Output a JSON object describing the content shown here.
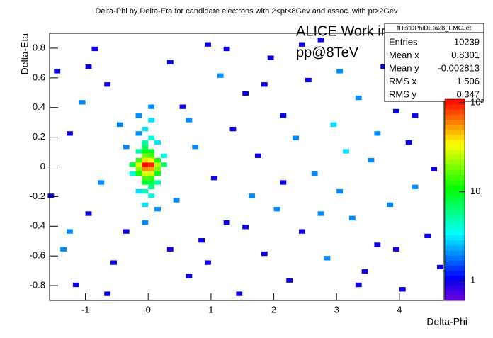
{
  "chart_data": {
    "type": "heatmap",
    "title": "Delta-Phi by Delta-Eta for candidate electrons with 2<pt<8Gev and assoc. with pt>2Gev",
    "xlabel": "Delta-Phi",
    "ylabel": "Delta-Eta",
    "annotations": [
      "ALICE Work in Progress",
      "pp@8TeV"
    ],
    "xlim": [
      -1.5708,
      4.7124
    ],
    "xticks": [
      -1,
      0,
      1,
      2,
      3,
      4
    ],
    "ylim": [
      -0.9,
      0.9
    ],
    "yticks": [
      -0.8,
      -0.6,
      -0.4,
      -0.2,
      0,
      0.2,
      0.4,
      0.6,
      0.8
    ],
    "zlim": [
      0.6,
      110
    ],
    "zticks": [
      1,
      10,
      {
        "value": 100,
        "label": "10²"
      }
    ],
    "zlog": true,
    "stats": {
      "title": "fHistDPhiDEta28_EMCJet",
      "rows": [
        [
          "Entries",
          10239
        ],
        [
          "Mean x",
          0.8301
        ],
        [
          "Mean y",
          -0.002813
        ],
        [
          "RMS x",
          1.506
        ],
        [
          "RMS y",
          0.347
        ]
      ]
    },
    "cells": [
      [
        -0.05,
        0.015,
        110
      ],
      [
        0.05,
        0.015,
        95
      ],
      [
        -0.05,
        -0.015,
        60
      ],
      [
        0.05,
        -0.015,
        55
      ],
      [
        -0.05,
        0.045,
        40
      ],
      [
        0.05,
        0.045,
        35
      ],
      [
        -0.15,
        0.015,
        30
      ],
      [
        0.15,
        0.015,
        25
      ],
      [
        -0.05,
        -0.045,
        30
      ],
      [
        0.05,
        -0.045,
        28
      ],
      [
        -0.15,
        -0.015,
        20
      ],
      [
        0.15,
        -0.015,
        18
      ],
      [
        -0.05,
        0.075,
        18
      ],
      [
        0.05,
        0.075,
        15
      ],
      [
        -0.05,
        -0.075,
        15
      ],
      [
        0.05,
        -0.075,
        14
      ],
      [
        -0.15,
        0.045,
        14
      ],
      [
        0.15,
        0.045,
        12
      ],
      [
        -0.15,
        -0.045,
        12
      ],
      [
        0.15,
        -0.045,
        10
      ],
      [
        -0.05,
        0.105,
        10
      ],
      [
        0.05,
        0.105,
        9
      ],
      [
        -0.05,
        -0.105,
        9
      ],
      [
        0.05,
        -0.105,
        8
      ],
      [
        -0.25,
        0.015,
        8
      ],
      [
        0.25,
        0.015,
        7
      ],
      [
        -0.05,
        0.135,
        7
      ],
      [
        0.05,
        -0.135,
        6
      ],
      [
        -0.05,
        0.165,
        5
      ],
      [
        0.05,
        0.195,
        4
      ],
      [
        -0.05,
        -0.165,
        5
      ],
      [
        0.05,
        -0.195,
        4
      ],
      [
        -0.15,
        0.105,
        5
      ],
      [
        0.15,
        -0.105,
        5
      ],
      [
        -0.25,
        -0.045,
        4
      ],
      [
        0.25,
        0.075,
        4
      ],
      [
        -0.05,
        0.255,
        3
      ],
      [
        0.05,
        0.315,
        3
      ],
      [
        -0.05,
        -0.255,
        3
      ],
      [
        -0.15,
        0.225,
        2
      ],
      [
        0.15,
        -0.285,
        2
      ],
      [
        -0.15,
        0.345,
        2
      ],
      [
        0.05,
        0.405,
        2
      ],
      [
        -0.05,
        -0.375,
        2
      ],
      [
        0.15,
        0.165,
        3
      ],
      [
        -0.15,
        -0.165,
        3
      ],
      [
        -1.45,
        0.645,
        1
      ],
      [
        -1.35,
        -0.555,
        2
      ],
      [
        -1.25,
        0.225,
        1
      ],
      [
        -1.15,
        -0.795,
        1
      ],
      [
        -1.05,
        0.435,
        2
      ],
      [
        -0.95,
        -0.315,
        1
      ],
      [
        -0.85,
        0.795,
        1
      ],
      [
        -0.75,
        -0.105,
        2
      ],
      [
        -0.65,
        0.555,
        1
      ],
      [
        -0.55,
        -0.645,
        1
      ],
      [
        -0.45,
        0.285,
        2
      ],
      [
        -0.35,
        -0.435,
        1
      ],
      [
        0.35,
        0.705,
        1
      ],
      [
        0.45,
        -0.225,
        2
      ],
      [
        0.55,
        0.405,
        1
      ],
      [
        0.65,
        -0.735,
        1
      ],
      [
        0.75,
        0.135,
        2
      ],
      [
        0.85,
        -0.495,
        1
      ],
      [
        0.95,
        0.825,
        1
      ],
      [
        1.05,
        -0.075,
        1
      ],
      [
        1.15,
        0.615,
        2
      ],
      [
        1.25,
        -0.375,
        1
      ],
      [
        1.35,
        0.255,
        1
      ],
      [
        1.45,
        -0.855,
        1
      ],
      [
        1.55,
        0.495,
        1
      ],
      [
        1.65,
        -0.195,
        2
      ],
      [
        1.75,
        0.075,
        1
      ],
      [
        1.85,
        -0.585,
        1
      ],
      [
        1.95,
        0.735,
        1
      ],
      [
        2.05,
        -0.285,
        2
      ],
      [
        2.15,
        0.345,
        1
      ],
      [
        2.25,
        -0.765,
        1
      ],
      [
        2.35,
        0.195,
        2
      ],
      [
        2.45,
        -0.435,
        1
      ],
      [
        2.55,
        0.585,
        1
      ],
      [
        2.65,
        -0.045,
        2
      ],
      [
        2.75,
        0.855,
        1
      ],
      [
        2.85,
        -0.615,
        2
      ],
      [
        2.95,
        0.285,
        3
      ],
      [
        3.05,
        -0.165,
        2
      ],
      [
        3.15,
        0.105,
        3
      ],
      [
        3.25,
        -0.345,
        2
      ],
      [
        3.35,
        0.465,
        2
      ],
      [
        3.45,
        -0.705,
        1
      ],
      [
        3.55,
        0.045,
        2
      ],
      [
        3.65,
        -0.525,
        1
      ],
      [
        3.75,
        0.675,
        1
      ],
      [
        3.85,
        -0.255,
        2
      ],
      [
        3.95,
        0.375,
        1
      ],
      [
        4.05,
        -0.825,
        1
      ],
      [
        4.15,
        0.165,
        1
      ],
      [
        4.25,
        -0.135,
        2
      ],
      [
        4.35,
        0.525,
        1
      ],
      [
        4.45,
        -0.465,
        1
      ],
      [
        4.55,
        0.765,
        1
      ],
      [
        4.65,
        -0.675,
        1
      ],
      [
        -1.55,
        -0.195,
        1
      ],
      [
        -1.25,
        -0.435,
        2
      ],
      [
        -0.95,
        0.675,
        1
      ],
      [
        -0.65,
        -0.855,
        1
      ],
      [
        -0.35,
        0.135,
        2
      ],
      [
        0.35,
        -0.555,
        1
      ],
      [
        0.65,
        0.315,
        2
      ],
      [
        0.95,
        -0.645,
        1
      ],
      [
        1.25,
        0.795,
        1
      ],
      [
        1.55,
        -0.405,
        1
      ],
      [
        1.85,
        0.555,
        1
      ],
      [
        2.15,
        -0.105,
        1
      ],
      [
        2.45,
        0.825,
        1
      ],
      [
        2.75,
        -0.315,
        2
      ],
      [
        3.05,
        0.645,
        2
      ],
      [
        3.35,
        -0.795,
        1
      ],
      [
        3.65,
        0.225,
        2
      ],
      [
        3.95,
        -0.555,
        1
      ],
      [
        4.25,
        0.345,
        1
      ],
      [
        4.55,
        -0.015,
        1
      ]
    ]
  }
}
